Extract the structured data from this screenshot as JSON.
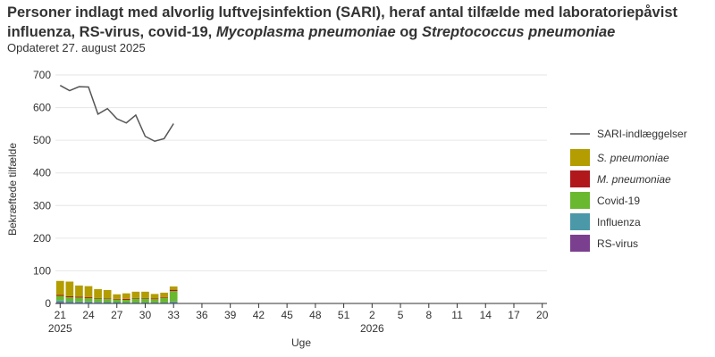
{
  "header": {
    "title_part1": "Personer indlagt med alvorlig luftvejsinfektion (SARI), heraf antal tilfælde med laboratoriepåvist influenza, RS-virus, covid-19, ",
    "title_italic1": "Mycoplasma pneumoniae",
    "title_part2": " og ",
    "title_italic2": "Streptococcus pneumoniae",
    "subtitle": "Opdateret 27. august 2025"
  },
  "chart_data": {
    "type": "bar",
    "xlabel": "Uge",
    "ylabel": "Bekræftede tilfælde",
    "ylim": [
      0,
      700
    ],
    "yticks": [
      0,
      100,
      200,
      300,
      400,
      500,
      600,
      700
    ],
    "grid": true,
    "legend_position": "right",
    "x_weeks": [
      21,
      22,
      23,
      24,
      25,
      26,
      27,
      28,
      29,
      30,
      31,
      32,
      33,
      34,
      35,
      36,
      37,
      38,
      39,
      40,
      41,
      42,
      43,
      44,
      45,
      46,
      47,
      48,
      49,
      50,
      51,
      52,
      1,
      2,
      3,
      4,
      5,
      6,
      7,
      8,
      9,
      10,
      11,
      12,
      13,
      14,
      15,
      16,
      17,
      18,
      19,
      20
    ],
    "xtick_labels": [
      "21",
      "24",
      "27",
      "30",
      "33",
      "36",
      "39",
      "42",
      "45",
      "48",
      "51",
      "2",
      "5",
      "8",
      "11",
      "14",
      "17",
      "20"
    ],
    "year_labels": [
      {
        "label": "2025",
        "at_week_index": 0
      },
      {
        "label": "2026",
        "at_week_index": 33
      }
    ],
    "line_series": {
      "name": "SARI-indlæggelser",
      "color": "#555555",
      "values": [
        668,
        652,
        664,
        663,
        580,
        597,
        566,
        553,
        577,
        512,
        497,
        505,
        551
      ]
    },
    "bar_series": [
      {
        "name": "RS-virus",
        "italic": false,
        "color": "#7b3f8f",
        "values": [
          3,
          2,
          2,
          2,
          2,
          1,
          1,
          1,
          1,
          1,
          1,
          1,
          2
        ]
      },
      {
        "name": "Influenza",
        "italic": false,
        "color": "#4a98a8",
        "values": [
          6,
          5,
          4,
          4,
          3,
          3,
          3,
          2,
          2,
          2,
          2,
          2,
          4
        ]
      },
      {
        "name": "Covid-19",
        "italic": false,
        "color": "#6ab82f",
        "values": [
          14,
          12,
          12,
          10,
          10,
          10,
          8,
          8,
          12,
          12,
          10,
          14,
          32
        ]
      },
      {
        "name": "M. pneumoniae",
        "italic": true,
        "color": "#b0181c",
        "values": [
          3,
          3,
          3,
          3,
          2,
          2,
          2,
          3,
          2,
          2,
          2,
          2,
          4
        ]
      },
      {
        "name": "S. pneumoniae",
        "italic": true,
        "color": "#b39d00",
        "values": [
          43,
          45,
          34,
          34,
          27,
          25,
          14,
          17,
          19,
          19,
          14,
          14,
          10
        ]
      }
    ],
    "legend_order": [
      "SARI-indlæggelser",
      "S. pneumoniae",
      "M. pneumoniae",
      "Covid-19",
      "Influenza",
      "RS-virus"
    ]
  }
}
